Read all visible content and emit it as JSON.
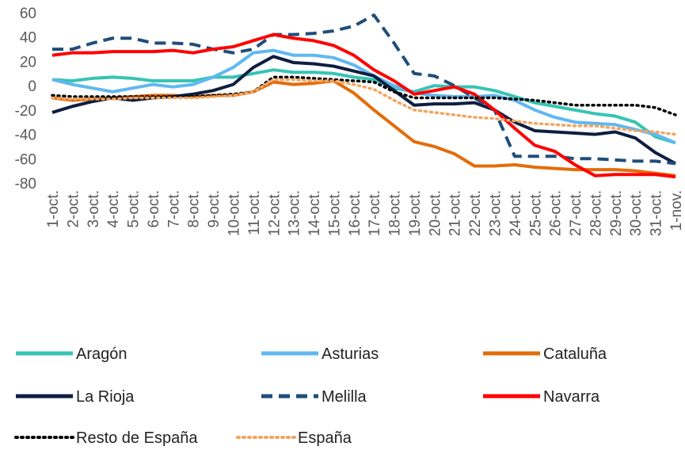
{
  "chart_data": {
    "type": "line",
    "categories": [
      "1-oct.",
      "2-oct.",
      "3-oct.",
      "4-oct.",
      "5-oct.",
      "6-oct.",
      "7-oct.",
      "8-oct.",
      "9-oct.",
      "10-oct.",
      "11-oct.",
      "12-oct.",
      "13-oct.",
      "14-oct.",
      "15-oct.",
      "16-oct.",
      "17-oct.",
      "18-oct.",
      "19-oct.",
      "20-oct.",
      "21-oct.",
      "22-oct.",
      "23-oct.",
      "24-oct.",
      "25-oct.",
      "26-oct.",
      "27-oct.",
      "28-oct.",
      "29-oct.",
      "30-oct.",
      "31-oct.",
      "1-nov."
    ],
    "ylim": [
      -80,
      60
    ],
    "yticks": [
      -80,
      -60,
      -40,
      -20,
      0,
      20,
      40,
      60
    ],
    "grid": false,
    "series": [
      {
        "name": "Aragón",
        "color": "#36c4b4",
        "style": "solid",
        "values": [
          5,
          4,
          6,
          7,
          6,
          4,
          4,
          4,
          7,
          7,
          10,
          13,
          11,
          11,
          10,
          7,
          5,
          -2,
          -5,
          0,
          -1,
          -1,
          -4,
          -9,
          -14,
          -17,
          -20,
          -23,
          -25,
          -30,
          -42,
          -47
        ]
      },
      {
        "name": "Asturias",
        "color": "#5fb8f0",
        "style": "solid",
        "values": [
          5,
          1,
          -2,
          -5,
          -2,
          1,
          -1,
          1,
          7,
          15,
          27,
          29,
          25,
          25,
          23,
          17,
          8,
          0,
          -6,
          -8,
          -9,
          -9,
          -8,
          -12,
          -20,
          -26,
          -30,
          -31,
          -32,
          -36,
          -40,
          -47
        ]
      },
      {
        "name": "Cataluña",
        "color": "#e36c0a",
        "style": "solid",
        "values": [
          -10,
          -12,
          -11,
          -10,
          -9,
          -8,
          -8,
          -9,
          -8,
          -8,
          -5,
          3,
          1,
          2,
          4,
          -6,
          -20,
          -33,
          -46,
          -50,
          -56,
          -66,
          -66,
          -65,
          -67,
          -68,
          -69,
          -69,
          -69,
          -70,
          -72,
          -74
        ]
      },
      {
        "name": "La Rioja",
        "color": "#0e1e40",
        "style": "solid",
        "values": [
          -22,
          -17,
          -13,
          -10,
          -12,
          -10,
          -9,
          -7,
          -4,
          1,
          15,
          24,
          19,
          18,
          16,
          12,
          8,
          -4,
          -16,
          -15,
          -15,
          -14,
          -20,
          -30,
          -37,
          -38,
          -39,
          -40,
          -38,
          -43,
          -55,
          -64
        ]
      },
      {
        "name": "Melilla",
        "color": "#1f4e79",
        "style": "dashed",
        "values": [
          30,
          30,
          35,
          39,
          39,
          35,
          35,
          34,
          30,
          27,
          30,
          42,
          42,
          43,
          45,
          49,
          58,
          35,
          10,
          8,
          0,
          -10,
          -20,
          -58,
          -58,
          -58,
          -60,
          -60,
          -61,
          -62,
          -62,
          -64
        ]
      },
      {
        "name": "Navarra",
        "color": "#ff0000",
        "style": "solid",
        "values": [
          25,
          27,
          27,
          28,
          28,
          28,
          29,
          27,
          30,
          32,
          37,
          42,
          39,
          37,
          33,
          25,
          13,
          4,
          -7,
          -4,
          -1,
          -7,
          -20,
          -35,
          -49,
          -54,
          -65,
          -74,
          -73,
          -73,
          -73,
          -75
        ]
      },
      {
        "name": "Resto de España",
        "color": "#000000",
        "style": "dotted",
        "values": [
          -8,
          -9,
          -9,
          -9,
          -9,
          -9,
          -9,
          -9,
          -8,
          -7,
          -5,
          7,
          7,
          6,
          5,
          4,
          3,
          -5,
          -10,
          -10,
          -10,
          -10,
          -10,
          -11,
          -12,
          -14,
          -16,
          -16,
          -16,
          -16,
          -18,
          -24
        ]
      },
      {
        "name": "España",
        "color": "#f4a460",
        "style": "dotted",
        "values": [
          -10,
          -11,
          -11,
          -11,
          -10,
          -10,
          -10,
          -10,
          -9,
          -8,
          -5,
          5,
          5,
          4,
          4,
          1,
          -3,
          -12,
          -20,
          -22,
          -24,
          -26,
          -27,
          -29,
          -31,
          -32,
          -33,
          -33,
          -35,
          -37,
          -38,
          -40
        ]
      }
    ]
  }
}
